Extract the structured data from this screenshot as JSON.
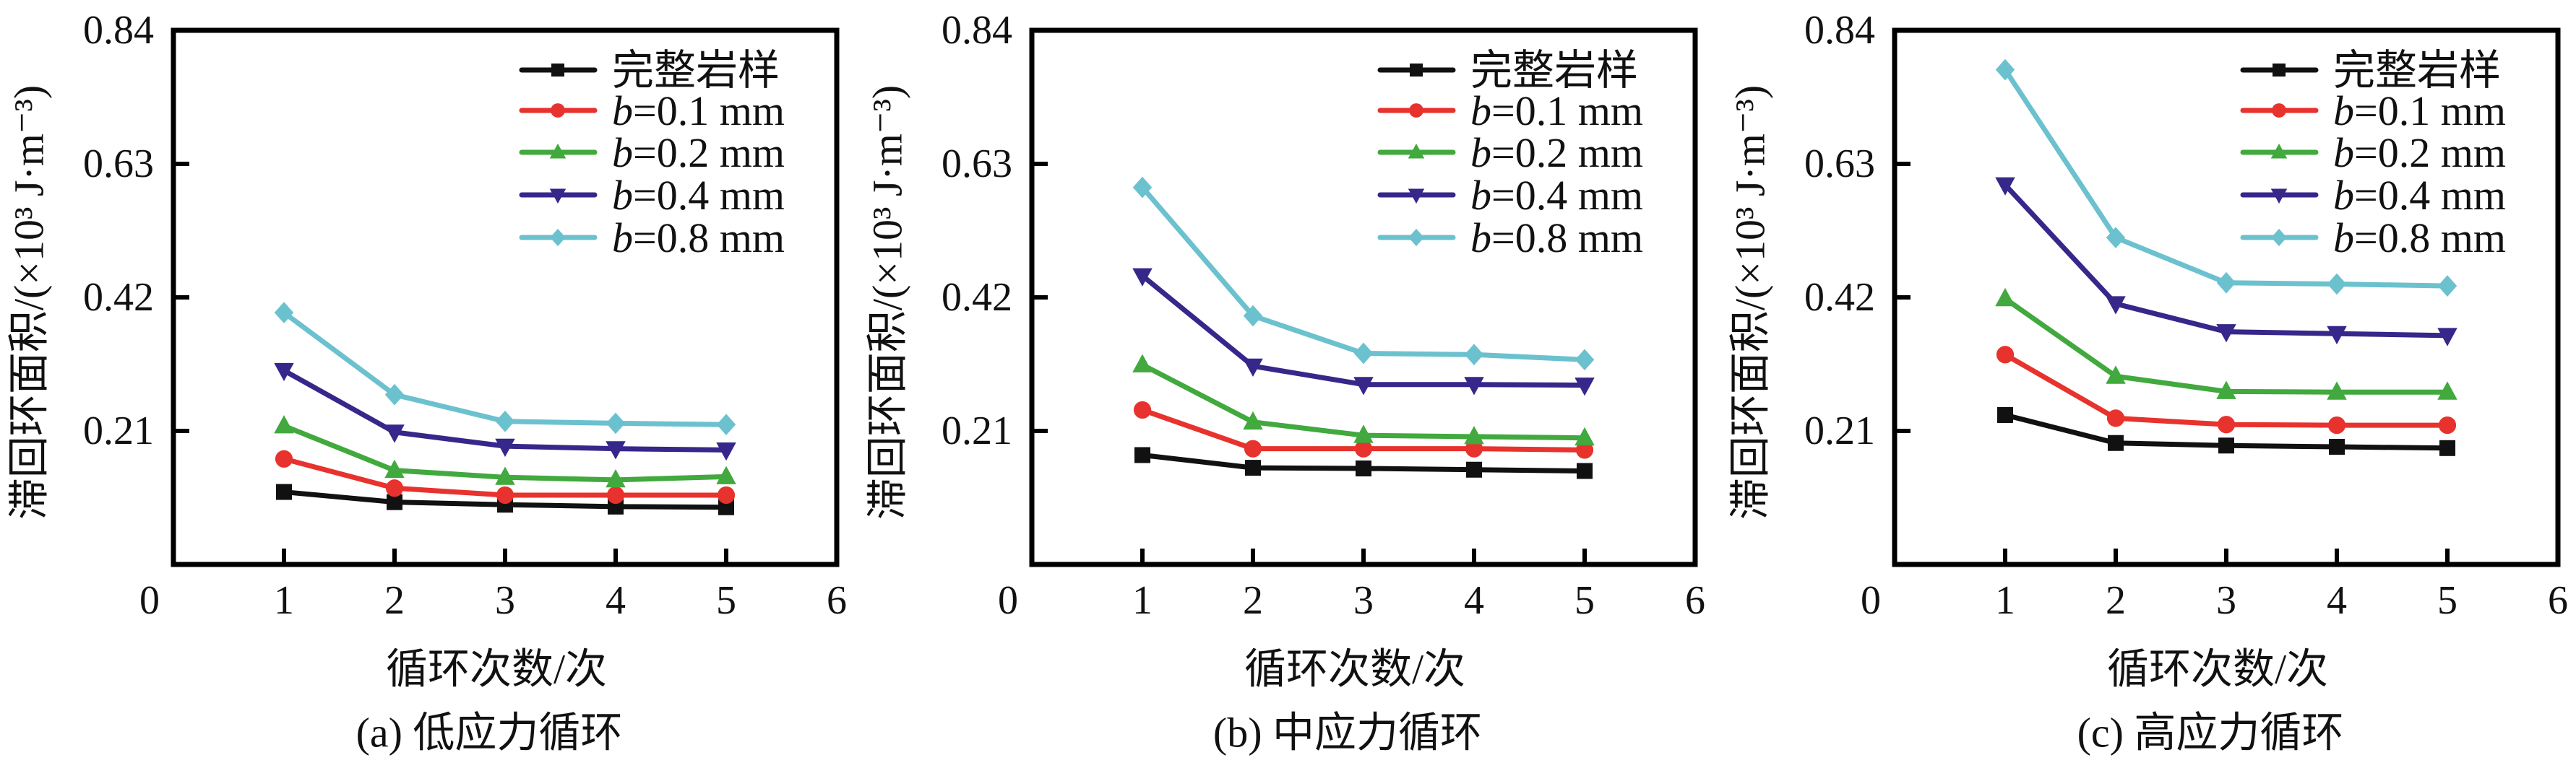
{
  "colors": {
    "intact": "#111111",
    "b01": "#e8322d",
    "b02": "#41a93d",
    "b04": "#36278a",
    "b08": "#6cc1ce",
    "axis": "#000000"
  },
  "legend": [
    {
      "key": "intact",
      "label": "完整岩样",
      "marker": "square",
      "italic_prefix": "",
      "rest": "完整岩样"
    },
    {
      "key": "b01",
      "label": "b=0.1 mm",
      "marker": "circle",
      "italic_prefix": "b",
      "rest": "=0.1 mm"
    },
    {
      "key": "b02",
      "label": "b=0.2 mm",
      "marker": "triangle-up",
      "italic_prefix": "b",
      "rest": "=0.2 mm"
    },
    {
      "key": "b04",
      "label": "b=0.4 mm",
      "marker": "triangle-down",
      "italic_prefix": "b",
      "rest": "=0.4 mm"
    },
    {
      "key": "b08",
      "label": "b=0.8 mm",
      "marker": "diamond",
      "italic_prefix": "b",
      "rest": "=0.8 mm"
    }
  ],
  "chart_data": [
    {
      "type": "line",
      "title": "(a) 低应力循环",
      "xlabel": "循环次数/次",
      "ylabel": "滞回环面积/(×10³ J·m⁻³)",
      "xlim": [
        0,
        6
      ],
      "ylim": [
        0,
        0.84
      ],
      "xticks": [
        "0",
        "1",
        "2",
        "3",
        "4",
        "5",
        "6"
      ],
      "yticks": [
        "0.21",
        "0.42",
        "0.63",
        "0.84"
      ],
      "ytick_values": [
        0.21,
        0.42,
        0.63,
        0.84
      ],
      "grid": false,
      "legend_position": "top-right",
      "x": [
        1,
        2,
        3,
        4,
        5
      ],
      "series": [
        {
          "key": "intact",
          "name": "完整岩样",
          "values": [
            0.114,
            0.098,
            0.094,
            0.091,
            0.09
          ]
        },
        {
          "key": "b01",
          "name": "b=0.1 mm",
          "values": [
            0.166,
            0.12,
            0.109,
            0.109,
            0.109
          ]
        },
        {
          "key": "b02",
          "name": "b=0.2 mm",
          "values": [
            0.218,
            0.148,
            0.137,
            0.133,
            0.138
          ]
        },
        {
          "key": "b04",
          "name": "b=0.4 mm",
          "values": [
            0.305,
            0.208,
            0.186,
            0.182,
            0.18
          ]
        },
        {
          "key": "b08",
          "name": "b=0.8 mm",
          "values": [
            0.396,
            0.267,
            0.225,
            0.222,
            0.22
          ]
        }
      ]
    },
    {
      "type": "line",
      "title": "(b) 中应力循环",
      "xlabel": "循环次数/次",
      "ylabel": "滞回环面积/(×10³ J·m⁻³)",
      "xlim": [
        0,
        6
      ],
      "ylim": [
        0,
        0.84
      ],
      "xticks": [
        "0",
        "1",
        "2",
        "3",
        "4",
        "5",
        "6"
      ],
      "yticks": [
        "0.21",
        "0.42",
        "0.63",
        "0.84"
      ],
      "ytick_values": [
        0.21,
        0.42,
        0.63,
        0.84
      ],
      "grid": false,
      "legend_position": "top-right",
      "x": [
        1,
        2,
        3,
        4,
        5
      ],
      "series": [
        {
          "key": "intact",
          "name": "完整岩样",
          "values": [
            0.172,
            0.152,
            0.151,
            0.149,
            0.147
          ]
        },
        {
          "key": "b01",
          "name": "b=0.1 mm",
          "values": [
            0.243,
            0.182,
            0.182,
            0.182,
            0.18
          ]
        },
        {
          "key": "b02",
          "name": "b=0.2 mm",
          "values": [
            0.314,
            0.224,
            0.203,
            0.201,
            0.199
          ]
        },
        {
          "key": "b04",
          "name": "b=0.4 mm",
          "values": [
            0.454,
            0.312,
            0.283,
            0.283,
            0.282
          ]
        },
        {
          "key": "b08",
          "name": "b=0.8 mm",
          "values": [
            0.593,
            0.391,
            0.332,
            0.33,
            0.322
          ]
        }
      ]
    },
    {
      "type": "line",
      "title": "(c) 高应力循环",
      "xlabel": "循环次数/次",
      "ylabel": "滞回环面积/(×10³ J·m⁻³)",
      "xlim": [
        0,
        6
      ],
      "ylim": [
        0,
        0.84
      ],
      "xticks": [
        "0",
        "1",
        "2",
        "3",
        "4",
        "5",
        "6"
      ],
      "yticks": [
        "0.21",
        "0.42",
        "0.63",
        "0.84"
      ],
      "ytick_values": [
        0.21,
        0.42,
        0.63,
        0.84
      ],
      "grid": false,
      "legend_position": "top-right",
      "x": [
        1,
        2,
        3,
        4,
        5
      ],
      "series": [
        {
          "key": "intact",
          "name": "完整岩样",
          "values": [
            0.235,
            0.191,
            0.187,
            0.185,
            0.183
          ]
        },
        {
          "key": "b01",
          "name": "b=0.1 mm",
          "values": [
            0.33,
            0.23,
            0.22,
            0.219,
            0.219
          ]
        },
        {
          "key": "b02",
          "name": "b=0.2 mm",
          "values": [
            0.418,
            0.296,
            0.272,
            0.271,
            0.271
          ]
        },
        {
          "key": "b04",
          "name": "b=0.4 mm",
          "values": [
            0.597,
            0.41,
            0.366,
            0.363,
            0.36
          ]
        },
        {
          "key": "b08",
          "name": "b=0.8 mm",
          "values": [
            0.778,
            0.514,
            0.443,
            0.441,
            0.438
          ]
        }
      ]
    }
  ]
}
